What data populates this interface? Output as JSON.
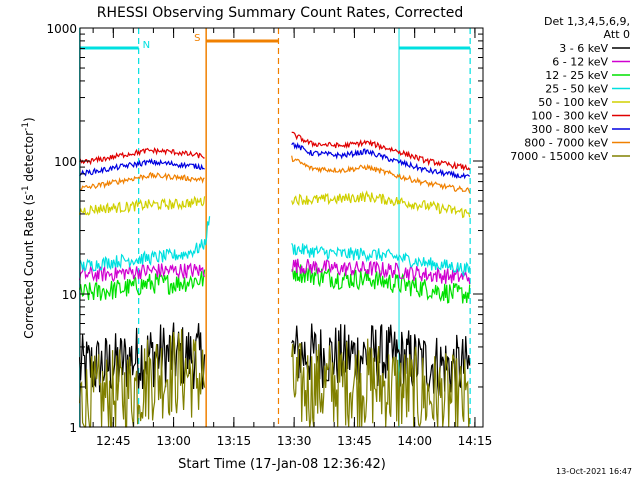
{
  "chart_data": {
    "type": "line",
    "title": "RHESSI Observing Summary Count Rates, Corrected",
    "xlabel": "Start Time (17-Jan-08 12:36:42)",
    "ylabel_main": "Corrected Count Rate (s",
    "ylabel_sup1": "-1",
    "ylabel_mid": " detector",
    "ylabel_sup2": "-1",
    "ylabel_end": ")",
    "y_scale": "log",
    "ylim": [
      1,
      1000
    ],
    "y_ticks": [
      {
        "value": 1,
        "label": "1"
      },
      {
        "value": 10,
        "label": "10"
      },
      {
        "value": 100,
        "label": "100"
      },
      {
        "value": 1000,
        "label": "1000"
      }
    ],
    "xlim": [
      "12:36:42",
      "14:17"
    ],
    "x_ticks": [
      {
        "value": 12.75,
        "label": "12:45"
      },
      {
        "value": 13.0,
        "label": "13:00"
      },
      {
        "value": 13.25,
        "label": "13:15"
      },
      {
        "value": 13.5,
        "label": "13:30"
      },
      {
        "value": 13.75,
        "label": "13:45"
      },
      {
        "value": 14.0,
        "label": "14:00"
      },
      {
        "value": 14.25,
        "label": "14:15"
      }
    ],
    "x_minor_step": 0.08333,
    "legend": {
      "position": "right",
      "header": [
        "Det 1,3,4,5,6,9,",
        "Att 0"
      ]
    },
    "series": [
      {
        "name": "3 - 6 keV",
        "color": "#000000",
        "points": [
          [
            12.61,
            2.8
          ],
          [
            12.75,
            2.9
          ],
          [
            12.86,
            3.4
          ],
          [
            12.95,
            3.5
          ],
          [
            13.05,
            3.4
          ],
          [
            13.13,
            3.4
          ],
          [
            13.49,
            3.6
          ],
          [
            13.57,
            3.5
          ],
          [
            13.7,
            3.4
          ],
          [
            13.82,
            3.5
          ],
          [
            13.92,
            3.3
          ],
          [
            14.05,
            3.0
          ],
          [
            14.17,
            2.8
          ],
          [
            14.23,
            2.8
          ]
        ],
        "noise": 0.25
      },
      {
        "name": "6 - 12 keV",
        "color": "#d000d0",
        "points": [
          [
            12.61,
            14
          ],
          [
            12.7,
            14
          ],
          [
            12.8,
            14.5
          ],
          [
            12.9,
            15
          ],
          [
            13.0,
            15
          ],
          [
            13.13,
            15
          ],
          [
            13.49,
            16.5
          ],
          [
            13.57,
            16
          ],
          [
            13.7,
            15.5
          ],
          [
            13.82,
            15.5
          ],
          [
            13.92,
            15
          ],
          [
            14.05,
            14
          ],
          [
            14.17,
            13.5
          ],
          [
            14.23,
            13.5
          ]
        ],
        "noise": 0.06
      },
      {
        "name": "12 - 25 keV",
        "color": "#00e000",
        "points": [
          [
            12.61,
            10
          ],
          [
            12.7,
            10.5
          ],
          [
            12.8,
            11
          ],
          [
            12.9,
            12
          ],
          [
            13.0,
            12
          ],
          [
            13.13,
            13
          ],
          [
            13.49,
            15
          ],
          [
            13.57,
            14
          ],
          [
            13.7,
            13
          ],
          [
            13.82,
            13
          ],
          [
            13.92,
            12
          ],
          [
            14.05,
            11
          ],
          [
            14.17,
            10
          ],
          [
            14.23,
            10
          ]
        ],
        "noise": 0.08
      },
      {
        "name": "25 - 50 keV",
        "color": "#00e0e0",
        "points": [
          [
            12.61,
            16
          ],
          [
            12.7,
            17
          ],
          [
            12.8,
            18
          ],
          [
            12.88,
            18.5
          ],
          [
            12.95,
            19
          ],
          [
            13.05,
            20
          ],
          [
            13.1,
            22
          ],
          [
            13.13,
            24
          ],
          [
            13.15,
            40
          ],
          [
            13.49,
            22
          ],
          [
            13.57,
            21
          ],
          [
            13.7,
            20
          ],
          [
            13.82,
            20
          ],
          [
            13.92,
            19
          ],
          [
            14.05,
            17
          ],
          [
            14.17,
            16
          ],
          [
            14.23,
            15
          ]
        ],
        "noise": 0.05
      },
      {
        "name": "50 - 100 keV",
        "color": "#d0d000",
        "points": [
          [
            12.61,
            42
          ],
          [
            12.7,
            44
          ],
          [
            12.8,
            45
          ],
          [
            12.9,
            47
          ],
          [
            13.0,
            47
          ],
          [
            13.13,
            50
          ],
          [
            13.49,
            52
          ],
          [
            13.57,
            51
          ],
          [
            13.7,
            52
          ],
          [
            13.8,
            54
          ],
          [
            13.92,
            50
          ],
          [
            14.05,
            46
          ],
          [
            14.17,
            42
          ],
          [
            14.23,
            40
          ]
        ],
        "noise": 0.04
      },
      {
        "name": "100 - 300 keV",
        "color": "#e00000",
        "points": [
          [
            12.61,
            97
          ],
          [
            12.7,
            103
          ],
          [
            12.8,
            112
          ],
          [
            12.9,
            120
          ],
          [
            13.0,
            117
          ],
          [
            13.13,
            108
          ],
          [
            13.49,
            160
          ],
          [
            13.57,
            135
          ],
          [
            13.7,
            130
          ],
          [
            13.8,
            138
          ],
          [
            13.92,
            120
          ],
          [
            14.05,
            100
          ],
          [
            14.17,
            92
          ],
          [
            14.23,
            88
          ]
        ],
        "noise": 0.02
      },
      {
        "name": "300 - 800 keV",
        "color": "#0000e0",
        "points": [
          [
            12.61,
            80
          ],
          [
            12.7,
            85
          ],
          [
            12.8,
            92
          ],
          [
            12.9,
            98
          ],
          [
            13.0,
            95
          ],
          [
            13.13,
            90
          ],
          [
            13.49,
            135
          ],
          [
            13.57,
            115
          ],
          [
            13.7,
            110
          ],
          [
            13.8,
            118
          ],
          [
            13.92,
            100
          ],
          [
            14.05,
            85
          ],
          [
            14.17,
            78
          ],
          [
            14.23,
            75
          ]
        ],
        "noise": 0.02
      },
      {
        "name": "800 - 7000 keV",
        "color": "#f08000",
        "points": [
          [
            12.61,
            62
          ],
          [
            12.7,
            66
          ],
          [
            12.8,
            72
          ],
          [
            12.9,
            78
          ],
          [
            13.0,
            76
          ],
          [
            13.13,
            72
          ],
          [
            13.49,
            105
          ],
          [
            13.57,
            88
          ],
          [
            13.7,
            85
          ],
          [
            13.8,
            90
          ],
          [
            13.92,
            78
          ],
          [
            14.05,
            68
          ],
          [
            14.17,
            62
          ],
          [
            14.23,
            60
          ]
        ],
        "noise": 0.02
      },
      {
        "name": "7000 - 15000 keV",
        "color": "#808000",
        "points": [
          [
            12.61,
            1.5
          ],
          [
            12.8,
            1.8
          ],
          [
            12.92,
            2.5
          ],
          [
            13.05,
            2.6
          ],
          [
            13.13,
            2.3
          ],
          [
            13.49,
            2.0
          ],
          [
            13.6,
            2.0
          ],
          [
            13.75,
            2.2
          ],
          [
            13.85,
            2.1
          ],
          [
            14.0,
            1.8
          ],
          [
            14.23,
            1.5
          ]
        ],
        "noise": 0.35
      }
    ],
    "annotations": [
      {
        "label": "N",
        "color": "#00e0e0",
        "x_start": 12.61,
        "x_end": 12.855
      },
      {
        "label": "",
        "color": "#00e0e0",
        "x_start": 13.935,
        "x_end": 14.23
      },
      {
        "label": "S",
        "color": "#f08000",
        "x_start": 13.135,
        "x_end": 13.435
      }
    ],
    "gap": [
      13.15,
      13.48
    ]
  },
  "footer": {
    "timestamp": "13-Oct-2021 16:47"
  }
}
